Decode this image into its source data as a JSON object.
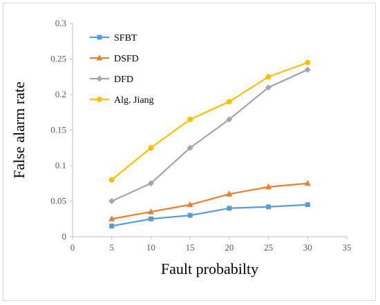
{
  "chart_data": {
    "type": "line",
    "title": "",
    "xlabel": "Fault probabilty",
    "ylabel": "False alarm rate",
    "xlim": [
      0,
      35
    ],
    "ylim": [
      0,
      0.3
    ],
    "x_ticks": [
      "0",
      "5",
      "10",
      "15",
      "20",
      "25",
      "30",
      "35"
    ],
    "y_ticks": [
      "0",
      "0.05",
      "0.1",
      "0.15",
      "0.2",
      "0.25",
      "0.3"
    ],
    "x": [
      5,
      10,
      15,
      20,
      25,
      30
    ],
    "grid": false,
    "legend_position": "top-left",
    "series": [
      {
        "name": "SFBT",
        "color": "#5B9BD5",
        "marker": "square",
        "values": [
          0.015,
          0.025,
          0.03,
          0.04,
          0.042,
          0.045
        ]
      },
      {
        "name": "DSFD",
        "color": "#ED7D31",
        "marker": "triangle",
        "values": [
          0.025,
          0.035,
          0.045,
          0.06,
          0.07,
          0.075
        ]
      },
      {
        "name": "DFD",
        "color": "#A5A5A5",
        "marker": "diamond",
        "values": [
          0.05,
          0.075,
          0.125,
          0.165,
          0.21,
          0.235
        ]
      },
      {
        "name": "Alg. Jiang",
        "color": "#FFC000",
        "marker": "circle",
        "values": [
          0.08,
          0.125,
          0.165,
          0.19,
          0.225,
          0.245
        ]
      }
    ]
  }
}
